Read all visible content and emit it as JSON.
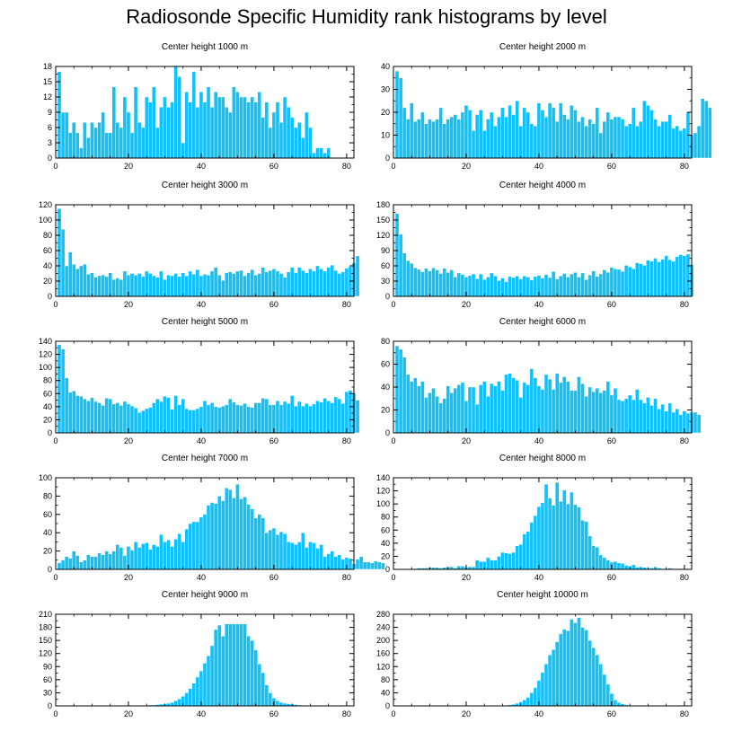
{
  "title": "Radiosonde Specific Humidity rank histograms by level",
  "colors": {
    "bar": "#14c0f8",
    "bar_edge": "#ffffff",
    "axis": "#000000"
  },
  "chart_data": [
    {
      "type": "bar",
      "title": "Center height 1000 m",
      "xlim": [
        0,
        82
      ],
      "ylim": [
        0,
        18
      ],
      "xticks": [
        0,
        20,
        40,
        60,
        80
      ],
      "yticks": [
        0,
        3,
        6,
        9,
        12,
        15,
        18
      ],
      "values": [
        17,
        9,
        9,
        5,
        7,
        5,
        2,
        7,
        4,
        7,
        6,
        7,
        9,
        5,
        5,
        14,
        7,
        6,
        12,
        9,
        5,
        14,
        7,
        6,
        12,
        11,
        14,
        6,
        10,
        12,
        10,
        11,
        18,
        16,
        3,
        13,
        11,
        17,
        10,
        13,
        11,
        14,
        10,
        13,
        12,
        12,
        10,
        9,
        14,
        13,
        12,
        12,
        11,
        12,
        11,
        13,
        8,
        11,
        6,
        9,
        11,
        7,
        12,
        10,
        8,
        6,
        7,
        4,
        9,
        6,
        1,
        2,
        2,
        1,
        2
      ]
    },
    {
      "type": "bar",
      "title": "Center height 2000 m",
      "xlim": [
        0,
        82
      ],
      "ylim": [
        0,
        40
      ],
      "xticks": [
        0,
        20,
        40,
        60,
        80
      ],
      "yticks": [
        0,
        10,
        20,
        30,
        40
      ],
      "values": [
        38,
        35,
        22,
        17,
        24,
        16,
        17,
        20,
        15,
        17,
        16,
        17,
        22,
        15,
        17,
        18,
        19,
        17,
        20,
        23,
        21,
        12,
        19,
        21,
        12,
        17,
        20,
        14,
        18,
        22,
        18,
        23,
        19,
        25,
        14,
        22,
        20,
        15,
        14,
        24,
        21,
        18,
        24,
        22,
        16,
        24,
        19,
        17,
        23,
        21,
        16,
        18,
        14,
        17,
        15,
        22,
        11,
        16,
        20,
        17,
        18,
        18,
        17,
        14,
        15,
        22,
        14,
        16,
        25,
        23,
        21,
        17,
        14,
        16,
        16,
        19,
        13,
        14,
        12,
        13,
        20,
        10,
        11,
        14,
        26,
        25,
        22
      ]
    },
    {
      "type": "bar",
      "title": "Center height 3000 m",
      "xlim": [
        0,
        82
      ],
      "ylim": [
        0,
        120
      ],
      "xticks": [
        0,
        20,
        40,
        60,
        80
      ],
      "yticks": [
        0,
        20,
        40,
        60,
        80,
        100,
        120
      ],
      "values": [
        115,
        88,
        40,
        58,
        42,
        36,
        40,
        42,
        29,
        31,
        25,
        27,
        28,
        26,
        31,
        22,
        24,
        22,
        33,
        28,
        30,
        28,
        30,
        26,
        33,
        30,
        27,
        25,
        33,
        22,
        28,
        27,
        30,
        26,
        31,
        27,
        33,
        29,
        35,
        27,
        29,
        28,
        33,
        38,
        28,
        21,
        31,
        32,
        30,
        33,
        34,
        27,
        31,
        35,
        28,
        30,
        38,
        32,
        34,
        36,
        33,
        30,
        25,
        32,
        38,
        31,
        38,
        34,
        31,
        36,
        33,
        40,
        36,
        33,
        38,
        41,
        34,
        30,
        32,
        37,
        39,
        44,
        53
      ]
    },
    {
      "type": "bar",
      "title": "Center height 4000 m",
      "xlim": [
        0,
        82
      ],
      "ylim": [
        0,
        180
      ],
      "xticks": [
        0,
        20,
        40,
        60,
        80
      ],
      "yticks": [
        0,
        30,
        60,
        90,
        120,
        150,
        180
      ],
      "values": [
        163,
        122,
        85,
        70,
        65,
        56,
        53,
        48,
        55,
        50,
        56,
        52,
        45,
        55,
        47,
        52,
        38,
        46,
        43,
        38,
        41,
        44,
        35,
        44,
        33,
        38,
        46,
        40,
        31,
        36,
        29,
        39,
        37,
        40,
        34,
        40,
        38,
        32,
        39,
        41,
        36,
        43,
        37,
        49,
        34,
        40,
        45,
        38,
        44,
        47,
        38,
        46,
        33,
        42,
        50,
        39,
        44,
        52,
        47,
        57,
        54,
        53,
        49,
        61,
        58,
        54,
        66,
        64,
        61,
        71,
        69,
        75,
        68,
        73,
        80,
        72,
        69,
        78,
        82,
        80,
        83,
        62
      ]
    },
    {
      "type": "bar",
      "title": "Center height 5000 m",
      "xlim": [
        0,
        82
      ],
      "ylim": [
        0,
        140
      ],
      "xticks": [
        0,
        20,
        40,
        60,
        80
      ],
      "yticks": [
        0,
        20,
        40,
        60,
        80,
        100,
        120,
        140
      ],
      "values": [
        135,
        128,
        84,
        62,
        64,
        57,
        56,
        52,
        49,
        54,
        48,
        46,
        42,
        53,
        52,
        44,
        46,
        42,
        48,
        44,
        41,
        38,
        31,
        34,
        37,
        39,
        46,
        52,
        48,
        56,
        54,
        36,
        57,
        43,
        52,
        37,
        35,
        35,
        37,
        40,
        49,
        43,
        46,
        40,
        39,
        41,
        43,
        52,
        47,
        43,
        42,
        45,
        40,
        39,
        46,
        46,
        53,
        52,
        43,
        43,
        49,
        43,
        48,
        45,
        57,
        41,
        48,
        41,
        45,
        41,
        44,
        49,
        47,
        53,
        49,
        46,
        55,
        52,
        45,
        63,
        65,
        61,
        50
      ]
    },
    {
      "type": "bar",
      "title": "Center height 6000 m",
      "xlim": [
        0,
        82
      ],
      "ylim": [
        0,
        80
      ],
      "xticks": [
        0,
        20,
        40,
        60,
        80
      ],
      "yticks": [
        0,
        20,
        40,
        60,
        80
      ],
      "values": [
        76,
        73,
        66,
        51,
        45,
        48,
        41,
        45,
        31,
        35,
        39,
        32,
        26,
        30,
        41,
        35,
        39,
        42,
        44,
        28,
        40,
        40,
        25,
        42,
        45,
        32,
        43,
        41,
        45,
        37,
        51,
        52,
        48,
        46,
        31,
        44,
        42,
        56,
        48,
        41,
        38,
        51,
        47,
        38,
        52,
        44,
        49,
        45,
        37,
        37,
        49,
        43,
        32,
        40,
        36,
        39,
        35,
        37,
        45,
        33,
        39,
        29,
        28,
        30,
        33,
        29,
        38,
        29,
        26,
        31,
        24,
        30,
        21,
        25,
        19,
        26,
        18,
        21,
        16,
        19,
        17,
        18,
        18,
        16
      ]
    },
    {
      "type": "bar",
      "title": "Center height 7000 m",
      "xlim": [
        0,
        82
      ],
      "ylim": [
        0,
        100
      ],
      "xticks": [
        0,
        20,
        40,
        60,
        80
      ],
      "yticks": [
        0,
        20,
        40,
        60,
        80,
        100
      ],
      "values": [
        7,
        10,
        14,
        12,
        20,
        15,
        8,
        10,
        16,
        14,
        14,
        18,
        16,
        20,
        17,
        20,
        27,
        24,
        15,
        25,
        21,
        30,
        24,
        28,
        29,
        22,
        27,
        25,
        38,
        30,
        32,
        25,
        33,
        39,
        30,
        44,
        50,
        52,
        52,
        57,
        60,
        70,
        73,
        72,
        80,
        75,
        89,
        87,
        78,
        93,
        77,
        79,
        71,
        66,
        56,
        60,
        56,
        40,
        43,
        45,
        38,
        41,
        39,
        30,
        29,
        27,
        30,
        40,
        24,
        30,
        29,
        23,
        27,
        14,
        17,
        20,
        14,
        16,
        11,
        13,
        12,
        6,
        11,
        14,
        8,
        8,
        7,
        9,
        8,
        7
      ]
    },
    {
      "type": "bar",
      "title": "Center height 8000 m",
      "xlim": [
        0,
        82
      ],
      "ylim": [
        0,
        140
      ],
      "xticks": [
        0,
        20,
        40,
        60,
        80
      ],
      "yticks": [
        0,
        20,
        40,
        60,
        80,
        100,
        120,
        140
      ],
      "values": [
        0,
        0,
        0,
        0,
        0,
        1,
        2,
        2,
        2,
        3,
        3,
        3,
        2,
        3,
        4,
        4,
        2,
        5,
        5,
        3,
        4,
        4,
        14,
        12,
        12,
        18,
        14,
        14,
        20,
        26,
        25,
        24,
        26,
        36,
        38,
        54,
        58,
        72,
        82,
        96,
        102,
        130,
        109,
        98,
        133,
        104,
        121,
        100,
        118,
        99,
        95,
        75,
        73,
        51,
        36,
        34,
        22,
        18,
        14,
        11,
        12,
        10,
        9,
        6,
        5,
        7,
        3,
        4,
        3,
        2,
        2,
        4,
        2,
        1,
        1,
        2,
        1,
        1,
        1,
        1
      ]
    },
    {
      "type": "bar",
      "title": "Center height 9000 m",
      "xlim": [
        0,
        82
      ],
      "ylim": [
        0,
        210
      ],
      "xticks": [
        0,
        20,
        40,
        60,
        80
      ],
      "yticks": [
        0,
        30,
        60,
        90,
        120,
        150,
        180,
        210
      ],
      "values": [
        0,
        0,
        0,
        0,
        0,
        0,
        0,
        0,
        0,
        0,
        0,
        0,
        0,
        0,
        0,
        0,
        0,
        0,
        0,
        0,
        0,
        0,
        1,
        1,
        1,
        2,
        2,
        3,
        4,
        5,
        6,
        8,
        12,
        16,
        22,
        30,
        40,
        52,
        66,
        80,
        98,
        115,
        138,
        175,
        185,
        160,
        188,
        188,
        188,
        188,
        188,
        188,
        160,
        150,
        128,
        96,
        76,
        48,
        30,
        18,
        12,
        8,
        6,
        5,
        4,
        3,
        2,
        1,
        1,
        1,
        1,
        0,
        0,
        0,
        0,
        0,
        0,
        0,
        0,
        0,
        0,
        0
      ]
    },
    {
      "type": "bar",
      "title": "Center height 10000 m",
      "xlim": [
        0,
        82
      ],
      "ylim": [
        0,
        280
      ],
      "xticks": [
        0,
        20,
        40,
        60,
        80
      ],
      "yticks": [
        0,
        40,
        80,
        120,
        160,
        200,
        240,
        280
      ],
      "values": [
        0,
        0,
        0,
        0,
        0,
        0,
        0,
        0,
        0,
        0,
        0,
        0,
        0,
        0,
        0,
        0,
        0,
        0,
        0,
        0,
        0,
        0,
        0,
        0,
        0,
        0,
        0,
        0,
        1,
        1,
        2,
        3,
        5,
        8,
        12,
        18,
        26,
        40,
        56,
        78,
        102,
        128,
        156,
        172,
        196,
        220,
        234,
        230,
        265,
        254,
        270,
        240,
        232,
        200,
        178,
        156,
        128,
        96,
        66,
        38,
        18,
        10,
        6,
        3,
        2,
        1,
        1,
        0,
        0,
        0,
        0,
        0,
        0,
        0,
        0,
        0,
        0,
        0,
        0,
        0
      ]
    }
  ]
}
